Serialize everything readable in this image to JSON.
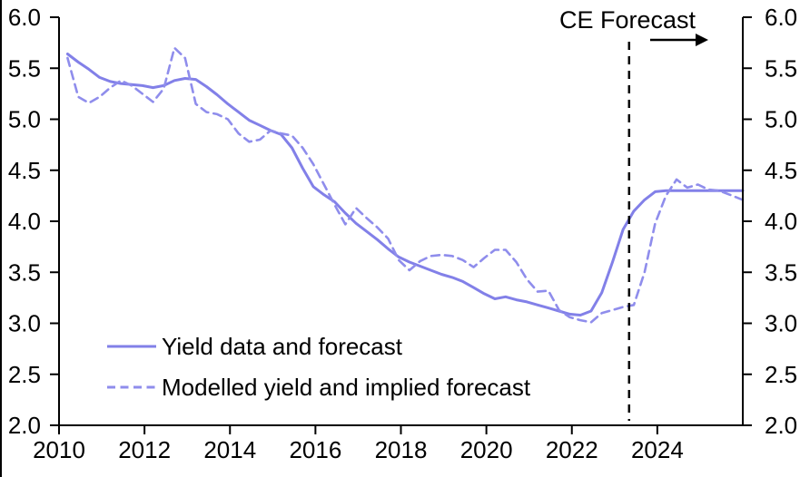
{
  "figure": {
    "background_color": "#ffffff",
    "left_border_color": "#000000"
  },
  "chart_data": {
    "type": "line",
    "title": "",
    "xlabel": "",
    "ylabel": "",
    "grid": false,
    "dual_y_axis": true,
    "x_range": [
      2010,
      2026
    ],
    "y_range": [
      2.0,
      6.0
    ],
    "x_ticks": [
      2010,
      2012,
      2014,
      2016,
      2018,
      2020,
      2022,
      2024
    ],
    "x_tick_labels": [
      "2010",
      "2012",
      "2014",
      "2016",
      "2018",
      "2020",
      "2022",
      "2024"
    ],
    "y_ticks": [
      2.0,
      2.5,
      3.0,
      3.5,
      4.0,
      4.5,
      5.0,
      5.5,
      6.0
    ],
    "y_tick_labels": [
      "2.0",
      "2.5",
      "3.0",
      "3.5",
      "4.0",
      "4.5",
      "5.0",
      "5.5",
      "6.0"
    ],
    "axis_color": "#000000",
    "annotation": {
      "label": "CE Forecast",
      "vline_x": 2023.34,
      "vline_style": "dashed",
      "vline_color": "#000000",
      "arrow_direction": "right"
    },
    "legend": {
      "position": "inside-bottom-left",
      "entries": [
        "Yield data and forecast",
        "Modelled yield and implied forecast"
      ]
    },
    "series": [
      {
        "name": "Yield data and forecast",
        "style": "solid",
        "color": "#8280e8",
        "points": [
          [
            2010.2,
            5.64
          ],
          [
            2010.45,
            5.56
          ],
          [
            2010.7,
            5.49
          ],
          [
            2010.95,
            5.41
          ],
          [
            2011.2,
            5.37
          ],
          [
            2011.45,
            5.35
          ],
          [
            2011.7,
            5.34
          ],
          [
            2011.95,
            5.33
          ],
          [
            2012.2,
            5.31
          ],
          [
            2012.45,
            5.33
          ],
          [
            2012.7,
            5.38
          ],
          [
            2012.95,
            5.4
          ],
          [
            2013.2,
            5.39
          ],
          [
            2013.45,
            5.32
          ],
          [
            2013.7,
            5.24
          ],
          [
            2013.95,
            5.15
          ],
          [
            2014.2,
            5.07
          ],
          [
            2014.45,
            4.99
          ],
          [
            2014.7,
            4.94
          ],
          [
            2014.95,
            4.89
          ],
          [
            2015.2,
            4.85
          ],
          [
            2015.45,
            4.72
          ],
          [
            2015.7,
            4.52
          ],
          [
            2015.95,
            4.34
          ],
          [
            2016.2,
            4.26
          ],
          [
            2016.45,
            4.19
          ],
          [
            2016.7,
            4.08
          ],
          [
            2016.95,
            3.98
          ],
          [
            2017.2,
            3.9
          ],
          [
            2017.45,
            3.82
          ],
          [
            2017.7,
            3.73
          ],
          [
            2017.95,
            3.65
          ],
          [
            2018.2,
            3.6
          ],
          [
            2018.45,
            3.56
          ],
          [
            2018.7,
            3.52
          ],
          [
            2018.95,
            3.48
          ],
          [
            2019.2,
            3.45
          ],
          [
            2019.45,
            3.41
          ],
          [
            2019.7,
            3.35
          ],
          [
            2019.95,
            3.29
          ],
          [
            2020.2,
            3.24
          ],
          [
            2020.45,
            3.26
          ],
          [
            2020.7,
            3.23
          ],
          [
            2020.95,
            3.21
          ],
          [
            2021.2,
            3.18
          ],
          [
            2021.45,
            3.15
          ],
          [
            2021.7,
            3.12
          ],
          [
            2021.95,
            3.09
          ],
          [
            2022.2,
            3.08
          ],
          [
            2022.45,
            3.12
          ],
          [
            2022.7,
            3.3
          ],
          [
            2022.95,
            3.6
          ],
          [
            2023.2,
            3.92
          ],
          [
            2023.45,
            4.1
          ],
          [
            2023.7,
            4.21
          ],
          [
            2023.95,
            4.29
          ],
          [
            2024.2,
            4.3
          ],
          [
            2024.45,
            4.3
          ],
          [
            2024.7,
            4.3
          ],
          [
            2024.95,
            4.3
          ],
          [
            2025.2,
            4.3
          ],
          [
            2025.45,
            4.3
          ],
          [
            2025.7,
            4.3
          ],
          [
            2026.0,
            4.3
          ]
        ]
      },
      {
        "name": "Modelled yield and implied forecast",
        "style": "dashed",
        "color": "#8f8dec",
        "points": [
          [
            2010.2,
            5.6
          ],
          [
            2010.45,
            5.22
          ],
          [
            2010.7,
            5.16
          ],
          [
            2010.95,
            5.22
          ],
          [
            2011.2,
            5.31
          ],
          [
            2011.45,
            5.38
          ],
          [
            2011.7,
            5.33
          ],
          [
            2011.95,
            5.25
          ],
          [
            2012.2,
            5.17
          ],
          [
            2012.45,
            5.3
          ],
          [
            2012.7,
            5.7
          ],
          [
            2012.95,
            5.6
          ],
          [
            2013.2,
            5.15
          ],
          [
            2013.45,
            5.07
          ],
          [
            2013.7,
            5.05
          ],
          [
            2013.95,
            5.0
          ],
          [
            2014.2,
            4.86
          ],
          [
            2014.45,
            4.78
          ],
          [
            2014.7,
            4.8
          ],
          [
            2014.95,
            4.89
          ],
          [
            2015.2,
            4.86
          ],
          [
            2015.45,
            4.84
          ],
          [
            2015.7,
            4.72
          ],
          [
            2015.95,
            4.56
          ],
          [
            2016.2,
            4.36
          ],
          [
            2016.45,
            4.16
          ],
          [
            2016.7,
            3.97
          ],
          [
            2016.95,
            4.13
          ],
          [
            2017.2,
            4.03
          ],
          [
            2017.45,
            3.94
          ],
          [
            2017.7,
            3.83
          ],
          [
            2017.95,
            3.62
          ],
          [
            2018.2,
            3.52
          ],
          [
            2018.45,
            3.61
          ],
          [
            2018.7,
            3.66
          ],
          [
            2018.95,
            3.67
          ],
          [
            2019.2,
            3.66
          ],
          [
            2019.45,
            3.62
          ],
          [
            2019.7,
            3.55
          ],
          [
            2019.95,
            3.64
          ],
          [
            2020.2,
            3.72
          ],
          [
            2020.45,
            3.72
          ],
          [
            2020.7,
            3.6
          ],
          [
            2020.95,
            3.43
          ],
          [
            2021.2,
            3.31
          ],
          [
            2021.45,
            3.32
          ],
          [
            2021.7,
            3.13
          ],
          [
            2021.95,
            3.06
          ],
          [
            2022.2,
            3.03
          ],
          [
            2022.45,
            3.01
          ],
          [
            2022.7,
            3.1
          ],
          [
            2022.95,
            3.13
          ],
          [
            2023.2,
            3.16
          ],
          [
            2023.45,
            3.18
          ],
          [
            2023.7,
            3.5
          ],
          [
            2023.95,
            3.98
          ],
          [
            2024.2,
            4.25
          ],
          [
            2024.45,
            4.41
          ],
          [
            2024.7,
            4.33
          ],
          [
            2024.95,
            4.36
          ],
          [
            2025.2,
            4.31
          ],
          [
            2025.45,
            4.3
          ],
          [
            2025.7,
            4.26
          ],
          [
            2026.0,
            4.21
          ]
        ]
      }
    ]
  }
}
